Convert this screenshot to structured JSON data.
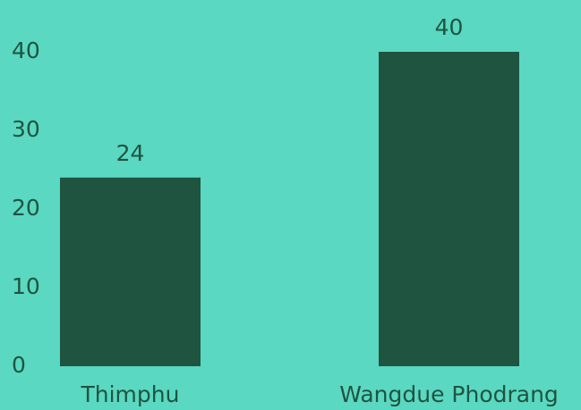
{
  "chart_data": {
    "type": "bar",
    "categories": [
      "Thimphu",
      "Wangdue Phodrang"
    ],
    "values": [
      24,
      40
    ],
    "color": "#1f5441",
    "ylim": [
      0,
      40
    ],
    "yticks": [
      0,
      10,
      20,
      30,
      40
    ],
    "grid": false,
    "data_labels": true
  }
}
